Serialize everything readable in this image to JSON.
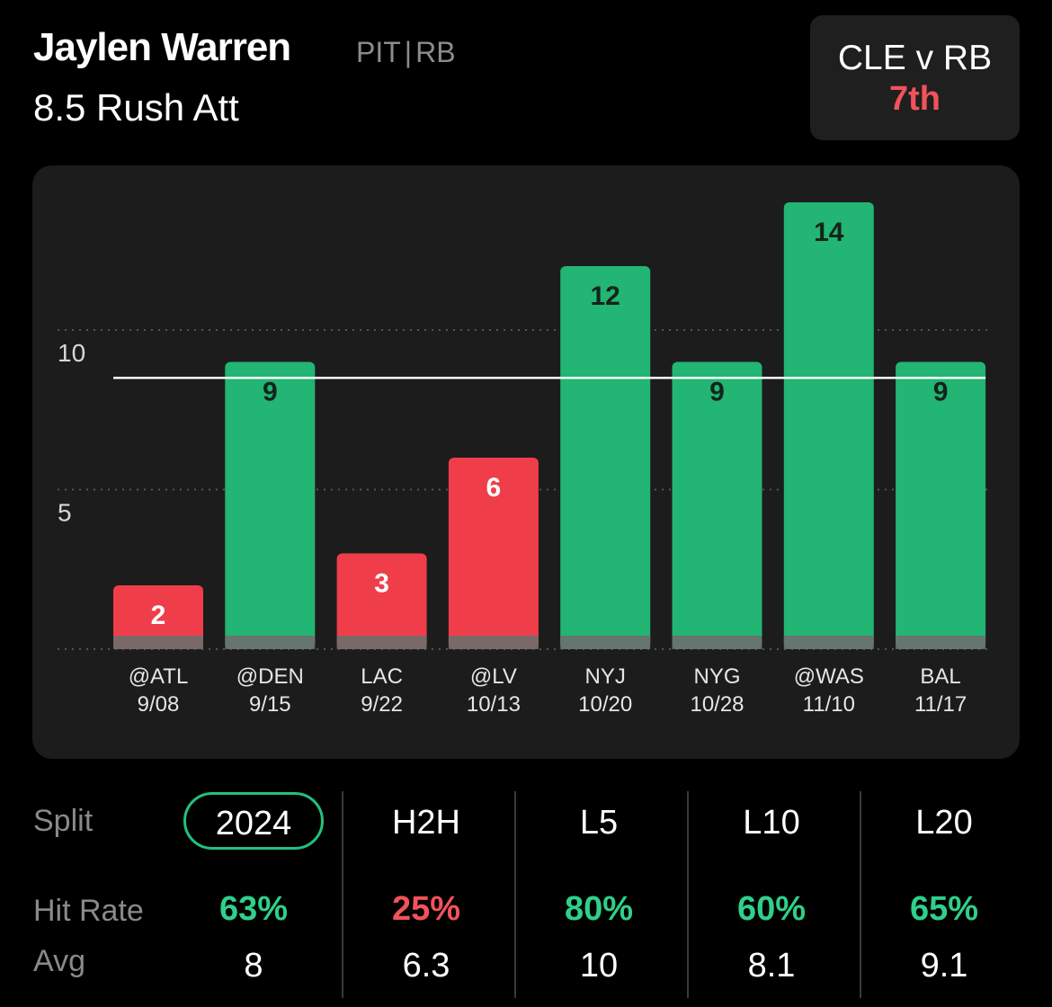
{
  "header": {
    "player_name": "Jaylen Warren",
    "team": "PIT",
    "position": "RB",
    "separator": "|",
    "prop_line": "8.5 Rush Att"
  },
  "matchup": {
    "title": "CLE v RB",
    "rank": "7th",
    "rank_color": "#f2525a"
  },
  "colors": {
    "over": "#22b573",
    "under": "#ef3e4a",
    "positive_text": "#2fd08a",
    "negative_text": "#f2525a",
    "panel": "#1c1c1c"
  },
  "chart_data": {
    "type": "bar",
    "categories": [
      "@ATL",
      "@DEN",
      "LAC",
      "@LV",
      "NYJ",
      "NYG",
      "@WAS",
      "BAL"
    ],
    "dates": [
      "9/08",
      "9/15",
      "9/22",
      "10/13",
      "10/20",
      "10/28",
      "11/10",
      "11/17"
    ],
    "values": [
      2,
      9,
      3,
      6,
      12,
      9,
      14,
      9
    ],
    "line": 8.5,
    "yticks": [
      5,
      10
    ],
    "ylim": [
      0,
      14
    ],
    "grid": true,
    "title": "",
    "xlabel": "",
    "ylabel": ""
  },
  "splits": {
    "row_labels": {
      "split": "Split",
      "hit_rate": "Hit Rate",
      "avg": "Avg"
    },
    "columns": [
      {
        "label": "2024",
        "hit_rate": "63%",
        "avg": "8",
        "positive": true,
        "active": true
      },
      {
        "label": "H2H",
        "hit_rate": "25%",
        "avg": "6.3",
        "positive": false,
        "active": false
      },
      {
        "label": "L5",
        "hit_rate": "80%",
        "avg": "10",
        "positive": true,
        "active": false
      },
      {
        "label": "L10",
        "hit_rate": "60%",
        "avg": "8.1",
        "positive": true,
        "active": false
      },
      {
        "label": "L20",
        "hit_rate": "65%",
        "avg": "9.1",
        "positive": true,
        "active": false
      }
    ]
  }
}
